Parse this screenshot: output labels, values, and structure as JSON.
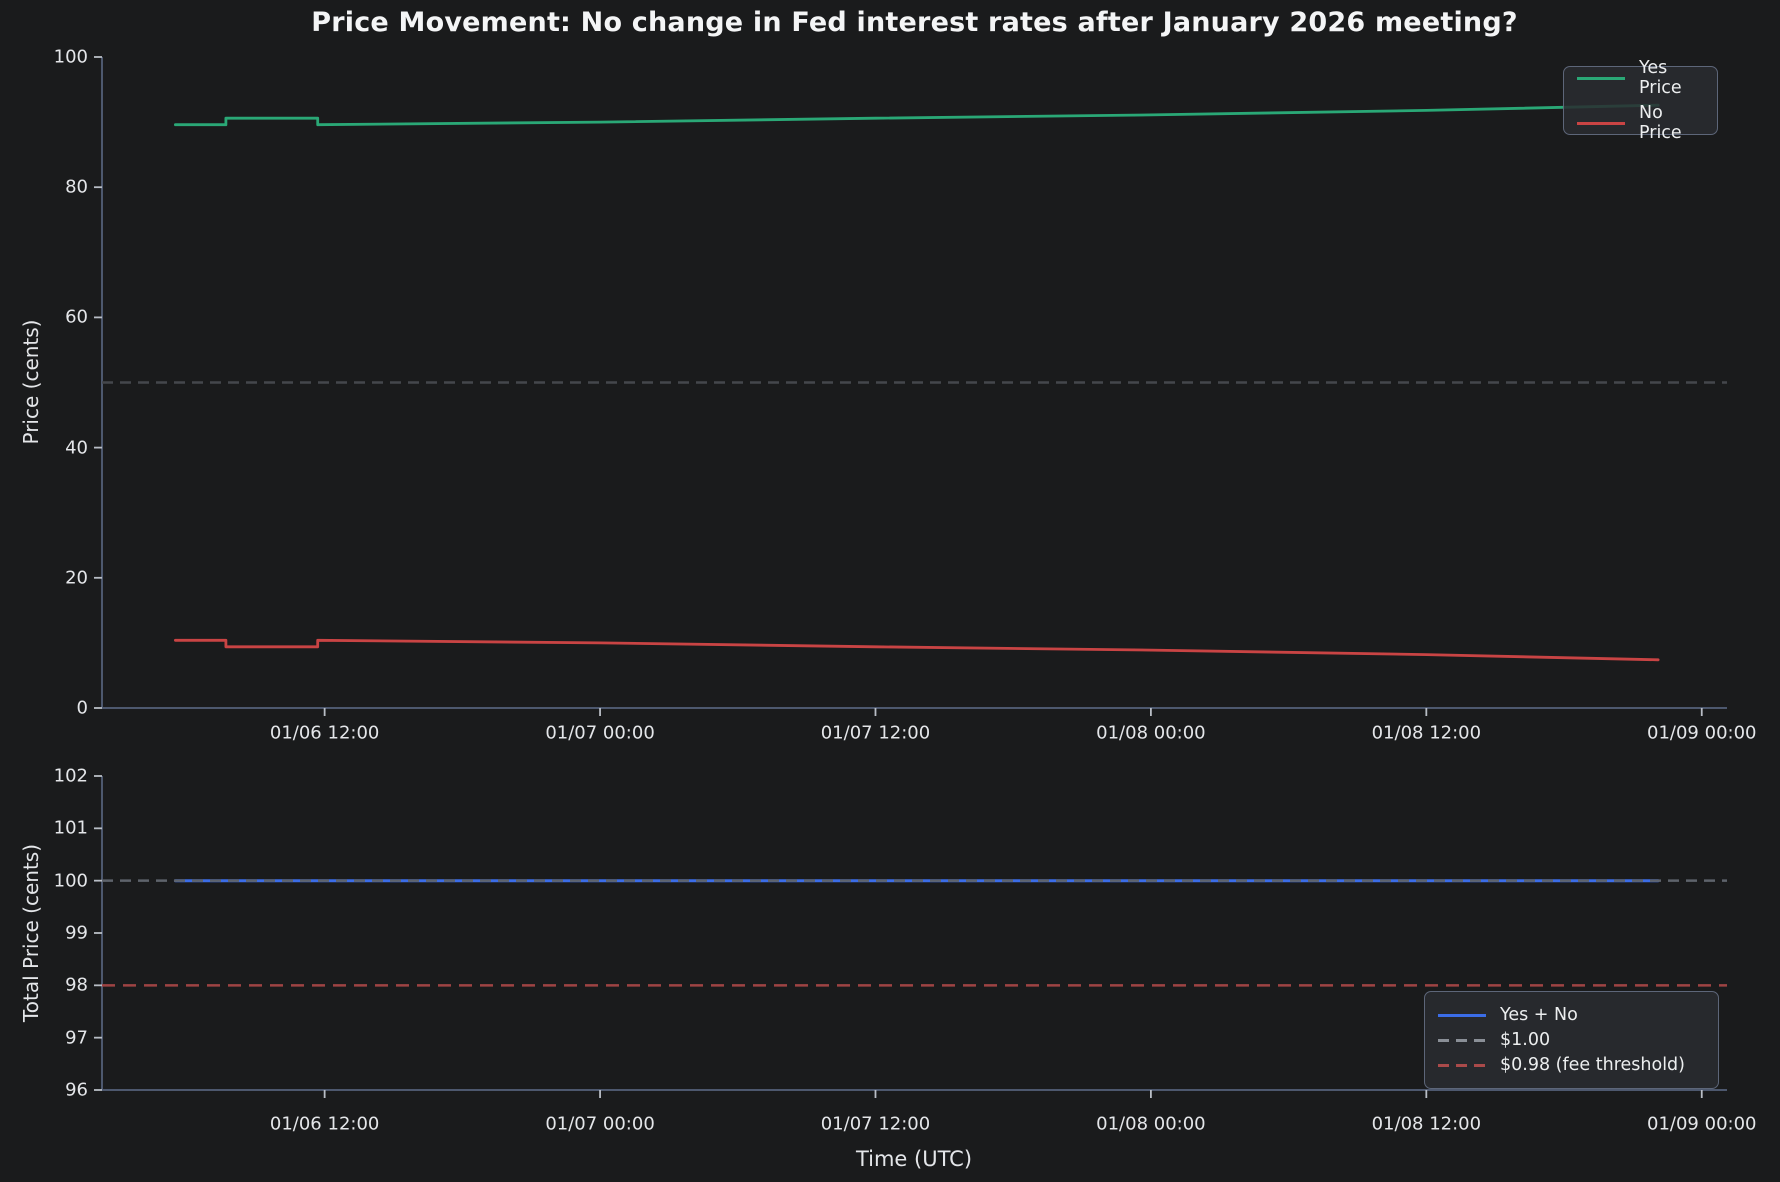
{
  "figure": {
    "title": "Price Movement: No change in Fed interest rates after January 2026 meeting?",
    "background": "#1a1b1c"
  },
  "colors": {
    "yes_price": "#2aa876",
    "no_price": "#c94444",
    "total_price": "#3b6de8",
    "half_dollar_line": "#44474c",
    "one_dollar_line": "#5e636b",
    "fee_threshold_line": "#9e4343",
    "spine": "#4d586e",
    "tick": "#b9bec6",
    "text": "#e8eaec",
    "legend_gray_sample": "#8a8f97",
    "legend_red_sample": "#aa4a4a"
  },
  "chart_data": [
    {
      "type": "line",
      "panel": "price",
      "ylabel": "Price (cents)",
      "ylim": [
        0,
        100
      ],
      "yticks": [
        0,
        20,
        40,
        60,
        80,
        100
      ],
      "xlim": [
        2.3,
        73.1
      ],
      "x_unit": "hours since 01/06 00:00 UTC",
      "xticks": [
        {
          "h": 12,
          "label": "01/06 12:00"
        },
        {
          "h": 24,
          "label": "01/07 00:00"
        },
        {
          "h": 36,
          "label": "01/07 12:00"
        },
        {
          "h": 48,
          "label": "01/08 00:00"
        },
        {
          "h": 60,
          "label": "01/08 12:00"
        },
        {
          "h": 72,
          "label": "01/09 00:00"
        }
      ],
      "grid": false,
      "series": [
        {
          "name": "Yes Price",
          "slug": "yes-price",
          "color": "#2aa876",
          "dash": "solid",
          "width": 2.8,
          "points": [
            [
              5.5,
              89.6
            ],
            [
              7.7,
              89.6
            ],
            [
              7.7,
              90.6
            ],
            [
              11.7,
              90.6
            ],
            [
              11.7,
              89.6
            ],
            [
              24,
              90.0
            ],
            [
              36,
              90.6
            ],
            [
              48,
              91.1
            ],
            [
              60,
              91.8
            ],
            [
              70.1,
              92.6
            ]
          ]
        },
        {
          "name": "No Price",
          "slug": "no-price",
          "color": "#c94444",
          "dash": "solid",
          "width": 2.8,
          "points": [
            [
              5.5,
              10.4
            ],
            [
              7.7,
              10.4
            ],
            [
              7.7,
              9.4
            ],
            [
              11.7,
              9.4
            ],
            [
              11.7,
              10.4
            ],
            [
              24,
              10.0
            ],
            [
              36,
              9.4
            ],
            [
              48,
              8.9
            ],
            [
              60,
              8.2
            ],
            [
              70.1,
              7.4
            ]
          ]
        }
      ],
      "reference_lines": [
        {
          "slug": "fifty-cents",
          "y": 50,
          "color": "#44474c",
          "dash": "11 7",
          "width": 2.5,
          "label": ""
        }
      ],
      "legend": {
        "position": "upper right",
        "entries": [
          {
            "label": "Yes Price",
            "slug": "yes-price",
            "color": "#2aa876",
            "dash": "solid"
          },
          {
            "label": "No Price",
            "slug": "no-price",
            "color": "#c94444",
            "dash": "solid"
          }
        ]
      }
    },
    {
      "type": "line",
      "panel": "total",
      "ylabel": "Total Price (cents)",
      "xlabel": "Time (UTC)",
      "ylim": [
        96,
        102
      ],
      "yticks": [
        96,
        97,
        98,
        99,
        100,
        101,
        102
      ],
      "xlim": [
        2.3,
        73.1
      ],
      "x_unit": "hours since 01/06 00:00 UTC",
      "xticks": [
        {
          "h": 12,
          "label": "01/06 12:00"
        },
        {
          "h": 24,
          "label": "01/07 00:00"
        },
        {
          "h": 36,
          "label": "01/07 12:00"
        },
        {
          "h": 48,
          "label": "01/08 00:00"
        },
        {
          "h": 60,
          "label": "01/08 12:00"
        },
        {
          "h": 72,
          "label": "01/09 00:00"
        }
      ],
      "grid": false,
      "series": [
        {
          "name": "Yes + No",
          "slug": "total",
          "color": "#3b6de8",
          "dash": "solid",
          "width": 3,
          "points": [
            [
              5.5,
              100
            ],
            [
              70.1,
              100
            ]
          ]
        }
      ],
      "reference_lines": [
        {
          "slug": "one-dollar",
          "y": 100,
          "color": "#5e636b",
          "dash": "11 7",
          "width": 2.5,
          "label": "$1.00"
        },
        {
          "slug": "fee-threshold",
          "y": 98,
          "color": "#9e4343",
          "dash": "13 8",
          "width": 2.5,
          "label": "$0.98 (fee threshold)"
        }
      ],
      "legend": {
        "position": "lower right",
        "entries": [
          {
            "label": "Yes + No",
            "slug": "total",
            "color": "#3b6de8",
            "dash": "solid"
          },
          {
            "label": "$1.00",
            "slug": "one-dollar",
            "color": "#8a8f97",
            "dash": "dashed"
          },
          {
            "label": "$0.98 (fee threshold)",
            "slug": "fee-threshold",
            "color": "#aa4a4a",
            "dash": "dashed"
          }
        ]
      }
    }
  ]
}
